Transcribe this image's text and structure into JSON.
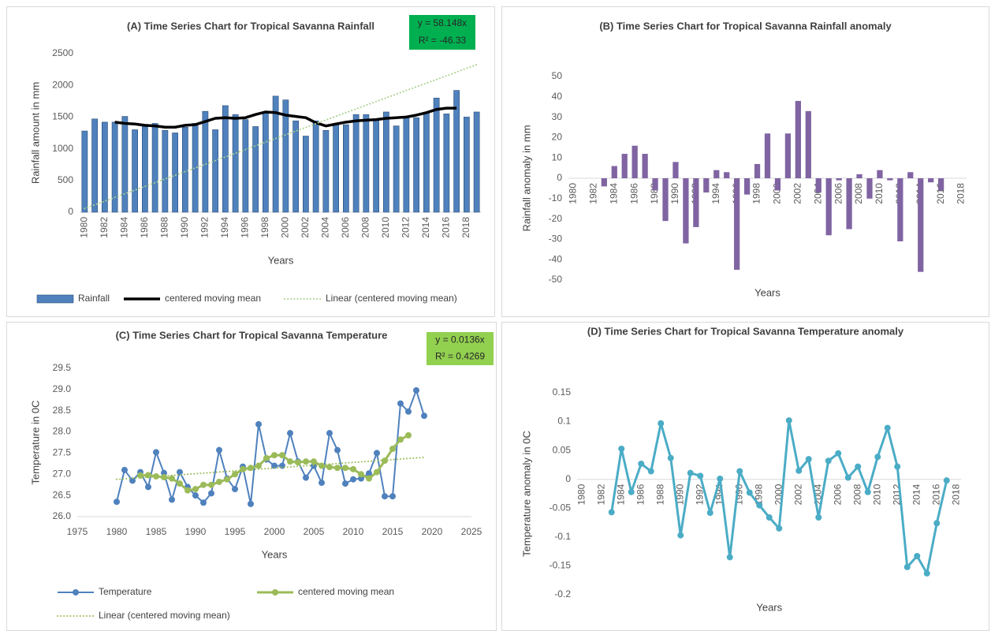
{
  "chart_data": [
    {
      "type": "bar",
      "title": "(A) Time Series Chart for Tropical  Savanna  Rainfall",
      "x_label": "Years",
      "y_label": "Rainfall amount in mm",
      "categories": [
        "1980",
        null,
        "1982",
        null,
        "1984",
        null,
        "1986",
        null,
        "1988",
        null,
        "1990",
        null,
        "1992",
        null,
        "1994",
        null,
        "1996",
        null,
        "1998",
        null,
        "2000",
        null,
        "2002",
        null,
        "2004",
        null,
        "2006",
        null,
        "2008",
        null,
        "2010",
        null,
        "2012",
        null,
        "2014",
        null,
        "2016",
        null,
        "2018",
        null
      ],
      "series": [
        {
          "name": "Rainfall",
          "type": "bar",
          "color": "#4f81bd",
          "values": [
            1280,
            1470,
            1420,
            1420,
            1510,
            1300,
            1350,
            1400,
            1290,
            1250,
            1340,
            1400,
            1590,
            1300,
            1680,
            1540,
            1460,
            1350,
            1560,
            1830,
            1770,
            1440,
            1200,
            1440,
            1290,
            1400,
            1380,
            1540,
            1540,
            1470,
            1580,
            1360,
            1490,
            1490,
            1560,
            1800,
            1550,
            1920,
            1500,
            1580
          ]
        },
        {
          "name": "centered moving mean",
          "type": "line",
          "color": "#000000",
          "width": 3.5,
          "values": [
            null,
            null,
            null,
            1420,
            1400,
            1390,
            1370,
            1360,
            1340,
            1340,
            1370,
            1380,
            1430,
            1480,
            1490,
            1480,
            1490,
            1540,
            1580,
            1570,
            1530,
            1510,
            1490,
            1410,
            1360,
            1390,
            1420,
            1440,
            1450,
            1460,
            1480,
            1490,
            1500,
            1530,
            1570,
            1620,
            1640,
            1640,
            null,
            null
          ]
        },
        {
          "name": "Linear (centered moving mean)",
          "type": "line",
          "style": "dotted",
          "color": "#a9d18e",
          "width": 2,
          "values": [
            58,
            116,
            174,
            233,
            291,
            349,
            407,
            465,
            523,
            581,
            640,
            698,
            756,
            814,
            872,
            930,
            988,
            1047,
            1105,
            1163,
            1221,
            1279,
            1337,
            1396,
            1454,
            1512,
            1570,
            1628,
            1686,
            1745,
            1803,
            1861,
            1919,
            1977,
            2035,
            2093,
            2151,
            2210,
            2268,
            2326
          ]
        }
      ],
      "ylim": [
        0,
        2500
      ],
      "yticks": [
        0,
        500,
        1000,
        1500,
        2000,
        2500
      ],
      "legend": "bottom",
      "annotation": [
        "y = 58.148x",
        "R² = -46.33"
      ],
      "annotation_color": "#00b050"
    },
    {
      "type": "bar",
      "title": "(B) Time Series Chart for Tropical  Savanna  Rainfall  anomaly",
      "x_label": "Years",
      "y_label": "Rainfall anomaly in mm",
      "categories": [
        "1980",
        null,
        "1982",
        null,
        "1984",
        null,
        "1986",
        null,
        "1988",
        null,
        "1990",
        null,
        "1992",
        null,
        "1994",
        null,
        "1996",
        null,
        "1998",
        null,
        "2000",
        null,
        "2002",
        null,
        "2004",
        null,
        "2006",
        null,
        "2008",
        null,
        "2010",
        null,
        "2012",
        null,
        "2014",
        null,
        "2016",
        null,
        "2018"
      ],
      "values": [
        null,
        null,
        null,
        -4,
        6,
        12,
        16,
        12,
        -6,
        -21,
        8,
        -32,
        -24,
        -7,
        4,
        3,
        -45,
        -8,
        7,
        22,
        -6,
        22,
        38,
        33,
        -7,
        -28,
        -1,
        -25,
        2,
        -10,
        4,
        -1,
        -31,
        3,
        -46,
        -2,
        -6,
        null,
        null
      ],
      "color": "#8064a2",
      "ylim": [
        -50,
        50
      ],
      "yticks": [
        -50,
        -40,
        -30,
        -20,
        -10,
        0,
        10,
        20,
        30,
        40,
        50
      ]
    },
    {
      "type": "line",
      "title": "(C) Time Series Chart for Tropical  Savanna  Temperature",
      "x_label": "Years",
      "y_label": "Temperature  in 0C",
      "series": [
        {
          "name": "Temperature",
          "color": "#4f81bd",
          "width": 2,
          "marker": true,
          "x": [
            1980,
            1981,
            1982,
            1983,
            1984,
            1985,
            1986,
            1987,
            1988,
            1989,
            1990,
            1991,
            1992,
            1993,
            1994,
            1995,
            1996,
            1997,
            1998,
            1999,
            2000,
            2001,
            2002,
            2003,
            2004,
            2005,
            2006,
            2007,
            2008,
            2009,
            2010,
            2011,
            2012,
            2013,
            2014,
            2015,
            2016,
            2017,
            2018,
            2019
          ],
          "values": [
            26.35,
            27.1,
            26.85,
            27.05,
            26.7,
            27.52,
            27.03,
            26.4,
            27.05,
            26.7,
            26.5,
            26.33,
            26.55,
            27.57,
            26.9,
            26.65,
            27.18,
            26.3,
            28.18,
            27.35,
            27.2,
            27.2,
            27.97,
            27.3,
            26.92,
            27.2,
            26.8,
            27.97,
            27.57,
            26.78,
            26.88,
            26.9,
            27.02,
            27.5,
            26.48,
            26.48,
            28.67,
            28.48,
            28.98,
            28.38
          ]
        },
        {
          "name": "centered moving mean",
          "color": "#9bbb59",
          "width": 3,
          "marker": true,
          "x": [
            1983,
            1984,
            1985,
            1986,
            1987,
            1988,
            1989,
            1990,
            1991,
            1992,
            1993,
            1994,
            1995,
            1996,
            1997,
            1998,
            1999,
            2000,
            2001,
            2002,
            2003,
            2004,
            2005,
            2006,
            2007,
            2008,
            2009,
            2010,
            2011,
            2012,
            2013,
            2014,
            2015,
            2016,
            2017
          ],
          "values": [
            26.97,
            26.98,
            26.95,
            26.93,
            26.9,
            26.78,
            26.62,
            26.65,
            26.75,
            26.75,
            26.82,
            26.88,
            27.0,
            27.12,
            27.15,
            27.2,
            27.38,
            27.45,
            27.45,
            27.3,
            27.28,
            27.3,
            27.3,
            27.2,
            27.17,
            27.15,
            27.15,
            27.12,
            27.0,
            26.9,
            27.05,
            27.32,
            27.6,
            27.82,
            27.92
          ]
        },
        {
          "name": "Linear (centered moving mean)",
          "style": "dotted",
          "color": "#9bbb59",
          "width": 2,
          "x": [
            1980,
            2019
          ],
          "values": [
            26.88,
            27.4
          ]
        }
      ],
      "xlim": [
        1975,
        2025
      ],
      "xticks": [
        1975,
        1980,
        1985,
        1990,
        1995,
        2000,
        2005,
        2010,
        2015,
        2020,
        2025
      ],
      "ylim": [
        26,
        29.5
      ],
      "yticks": [
        {
          "value": 26,
          "label": "26.0"
        },
        26.5,
        {
          "value": 27,
          "label": "27.0"
        },
        27.5,
        {
          "value": 28,
          "label": "28.0"
        },
        28.5,
        {
          "value": 29,
          "label": "29.0"
        },
        29.5
      ],
      "legend": "bottom",
      "annotation": [
        "y = 0.0136x",
        "R² = 0.4269"
      ],
      "annotation_color": "#92d050"
    },
    {
      "type": "line",
      "title": "(D) Time Series Chart for Tropical  Savanna  Temperature anomaly",
      "x_label": "Years",
      "y_label": "Temperature  anomaly in 0C",
      "categories": [
        "1980",
        null,
        "1982",
        null,
        "1984",
        null,
        "1986",
        null,
        "1988",
        null,
        "1990",
        null,
        "1992",
        null,
        "1994",
        null,
        "1996",
        null,
        "1998",
        null,
        "2000",
        null,
        "2002",
        null,
        "2004",
        null,
        "2006",
        null,
        "2008",
        null,
        "2010",
        null,
        "2012",
        null,
        "2014",
        null,
        "2016",
        null,
        "2018"
      ],
      "values": [
        null,
        null,
        null,
        -0.057,
        0.053,
        -0.022,
        0.027,
        0.014,
        0.097,
        0.037,
        -0.097,
        0.011,
        0.006,
        -0.058,
        0.001,
        -0.135,
        0.014,
        -0.023,
        -0.045,
        -0.066,
        -0.085,
        0.102,
        0.015,
        0.035,
        -0.066,
        0.032,
        0.045,
        0.003,
        0.022,
        -0.022,
        0.039,
        0.089,
        0.022,
        -0.152,
        -0.133,
        -0.163,
        -0.076,
        -0.002,
        null
      ],
      "color": "#4bacc6",
      "width": 3,
      "marker": true,
      "ylim": [
        -0.2,
        0.15
      ],
      "yticks": [
        -0.2,
        -0.15,
        -0.1,
        -0.05,
        0,
        0.05,
        0.1,
        0.15
      ]
    }
  ]
}
